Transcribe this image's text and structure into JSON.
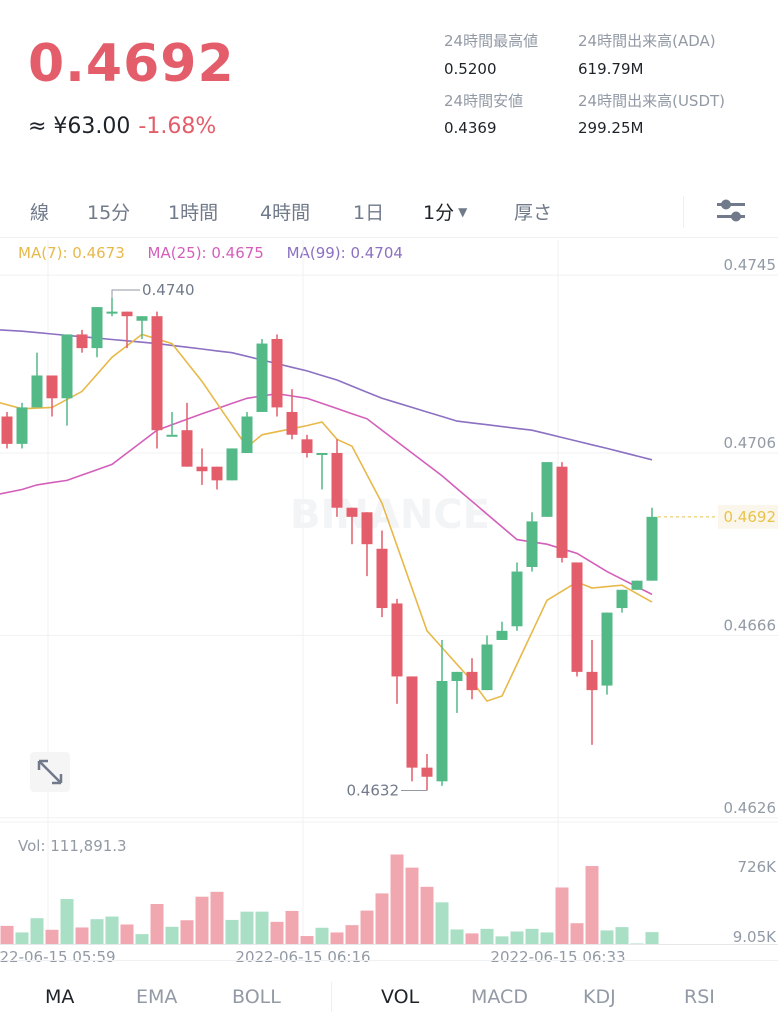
{
  "header": {
    "price": "0.4692",
    "fiat": "≈ ¥63.00",
    "change": "-1.68%",
    "stats": [
      {
        "label": "24時間最高値",
        "value": "0.5200"
      },
      {
        "label": "24時間出来高(ADA)",
        "value": "619.79M"
      },
      {
        "label": "24時間安値",
        "value": "0.4369"
      },
      {
        "label": "24時間出来高(USDT)",
        "value": "299.25M"
      }
    ]
  },
  "tabs": [
    {
      "label": "線"
    },
    {
      "label": "15分"
    },
    {
      "label": "1時間"
    },
    {
      "label": "4時間"
    },
    {
      "label": "1日"
    },
    {
      "label": "1分",
      "selected": true,
      "dropdown": true
    },
    {
      "label": "厚さ"
    }
  ],
  "settings_icon": "sliders-icon",
  "ma_legend": {
    "ma7": "MA(7): 0.4673",
    "ma25": "MA(25): 0.4675",
    "ma99": "MA(99): 0.4704"
  },
  "indicators": [
    {
      "label": "MA",
      "selected": true
    },
    {
      "label": "EMA"
    },
    {
      "label": "BOLL"
    },
    {
      "label": "VOL",
      "selected": true
    },
    {
      "label": "MACD"
    },
    {
      "label": "KDJ"
    },
    {
      "label": "RSI"
    }
  ],
  "colors": {
    "up": "#53b987",
    "down": "#e35d6a",
    "up_vol": "#a8dfc5",
    "down_vol": "#f1a7b0",
    "ma7": "#e8b94a",
    "ma25": "#d45fba",
    "ma99": "#8c70c2",
    "price": "#e35d6a",
    "last": "#e8c34a"
  },
  "watermark": "BINANCE",
  "chart_data": {
    "type": "candlestick",
    "y_ticks": [
      "0.4745",
      "0.4706",
      "0.4666",
      "0.4626"
    ],
    "x_ticks": [
      "2022-06-15 05:59",
      "2022-06-15 06:16",
      "2022-06-15 06:33"
    ],
    "high_marker": "0.4740",
    "low_marker": "0.4632",
    "last_price": "0.4692",
    "ohlc": [
      [
        0.4714,
        0.4715,
        0.4707,
        0.4708
      ],
      [
        0.4708,
        0.4717,
        0.4707,
        0.4716
      ],
      [
        0.4716,
        0.4728,
        0.4716,
        0.4723
      ],
      [
        0.4723,
        0.4723,
        0.4714,
        0.4718
      ],
      [
        0.4718,
        0.4732,
        0.4712,
        0.4732
      ],
      [
        0.4732,
        0.4733,
        0.4728,
        0.4729
      ],
      [
        0.4729,
        0.4738,
        0.4727,
        0.4738
      ],
      [
        0.4737,
        0.474,
        0.4736,
        0.4737
      ],
      [
        0.4737,
        0.4737,
        0.4729,
        0.4736
      ],
      [
        0.4735,
        0.4736,
        0.4731,
        0.4736
      ],
      [
        0.4736,
        0.4737,
        0.4707,
        0.4711
      ],
      [
        0.471,
        0.4715,
        0.471,
        0.471
      ],
      [
        0.4711,
        0.4717,
        0.4703,
        0.4703
      ],
      [
        0.4703,
        0.4707,
        0.4699,
        0.4702
      ],
      [
        0.4703,
        0.4703,
        0.4698,
        0.47
      ],
      [
        0.47,
        0.4707,
        0.47,
        0.4707
      ],
      [
        0.4706,
        0.4715,
        0.4706,
        0.4714
      ],
      [
        0.4715,
        0.4731,
        0.4715,
        0.473
      ],
      [
        0.4731,
        0.4732,
        0.4714,
        0.4716
      ],
      [
        0.4715,
        0.472,
        0.4709,
        0.471
      ],
      [
        0.4709,
        0.471,
        0.4705,
        0.4706
      ],
      [
        0.4706,
        0.4706,
        0.4698,
        0.4706
      ],
      [
        0.4706,
        0.4709,
        0.4692,
        0.4694
      ],
      [
        0.4694,
        0.4694,
        0.4686,
        0.4692
      ],
      [
        0.4693,
        0.4693,
        0.4679,
        0.4686
      ],
      [
        0.4685,
        0.4689,
        0.467,
        0.4672
      ],
      [
        0.4673,
        0.4674,
        0.4651,
        0.4657
      ],
      [
        0.4657,
        0.4657,
        0.4634,
        0.4637
      ],
      [
        0.4637,
        0.464,
        0.4632,
        0.4635
      ],
      [
        0.4634,
        0.4665,
        0.4633,
        0.4656
      ],
      [
        0.4656,
        0.4658,
        0.4649,
        0.4658
      ],
      [
        0.4658,
        0.4661,
        0.4652,
        0.4654
      ],
      [
        0.4654,
        0.4666,
        0.4654,
        0.4664
      ],
      [
        0.4665,
        0.4669,
        0.4665,
        0.4667
      ],
      [
        0.4668,
        0.4682,
        0.4667,
        0.468
      ],
      [
        0.4681,
        0.4693,
        0.468,
        0.4691
      ],
      [
        0.4692,
        0.4704,
        0.4692,
        0.4704
      ],
      [
        0.4703,
        0.4704,
        0.4682,
        0.4683
      ],
      [
        0.4682,
        0.4682,
        0.4657,
        0.4658
      ],
      [
        0.4658,
        0.4665,
        0.4642,
        0.4654
      ],
      [
        0.4655,
        0.4671,
        0.4653,
        0.4671
      ],
      [
        0.4672,
        0.4676,
        0.4671,
        0.4676
      ],
      [
        0.4676,
        0.4678,
        0.4676,
        0.4678
      ],
      [
        0.4678,
        0.4694,
        0.4678,
        0.4692
      ]
    ],
    "ma7": [
      [
        0,
        0.4717
      ],
      [
        1,
        0.47157
      ],
      [
        3,
        0.4716
      ],
      [
        5,
        0.47195
      ],
      [
        7,
        0.4727
      ],
      [
        9,
        0.4732
      ],
      [
        11,
        0.473
      ],
      [
        13,
        0.47217
      ],
      [
        16,
        0.47073
      ],
      [
        17,
        0.471
      ],
      [
        20,
        0.4712
      ],
      [
        21,
        0.47128
      ],
      [
        22,
        0.4709
      ],
      [
        23,
        0.47075
      ],
      [
        25,
        0.4695
      ],
      [
        28,
        0.4667
      ],
      [
        31,
        0.4656
      ],
      [
        32,
        0.46516
      ],
      [
        33,
        0.46527
      ],
      [
        36,
        0.46737
      ],
      [
        38,
        0.46777
      ],
      [
        39,
        0.46764
      ],
      [
        41,
        0.4677
      ],
      [
        43,
        0.46733
      ]
    ],
    "ma25": [
      [
        0,
        0.4697
      ],
      [
        2,
        0.4699
      ],
      [
        4,
        0.47
      ],
      [
        7,
        0.47035
      ],
      [
        10,
        0.4711
      ],
      [
        13,
        0.47146
      ],
      [
        16,
        0.4718
      ],
      [
        18,
        0.4719
      ],
      [
        20,
        0.4718
      ],
      [
        24,
        0.47135
      ],
      [
        29,
        0.4701
      ],
      [
        34,
        0.4687
      ],
      [
        36,
        0.4686
      ],
      [
        38,
        0.4684
      ],
      [
        40,
        0.468
      ],
      [
        43,
        0.4675
      ]
    ],
    "ma99": [
      [
        0,
        0.4733
      ],
      [
        5,
        0.47315
      ],
      [
        10,
        0.473
      ],
      [
        15,
        0.4728
      ],
      [
        20,
        0.4724
      ],
      [
        22,
        0.4722
      ],
      [
        25,
        0.4718
      ],
      [
        30,
        0.4713
      ],
      [
        35,
        0.4711
      ],
      [
        40,
        0.4707
      ],
      [
        43,
        0.47045
      ]
    ],
    "volume": {
      "label": "Vol: 111,891.3",
      "y_ticks": [
        "726K",
        "9.05K"
      ],
      "values_k": [
        171,
        109,
        243,
        134,
        424,
        156,
        234,
        259,
        184,
        93,
        377,
        162,
        224,
        446,
        492,
        227,
        305,
        305,
        209,
        312,
        75,
        153,
        109,
        178,
        315,
        477,
        844,
        720,
        539,
        393,
        137,
        100,
        143,
        72,
        118,
        143,
        109,
        533,
        196,
        735,
        128,
        159,
        5,
        112
      ]
    }
  }
}
